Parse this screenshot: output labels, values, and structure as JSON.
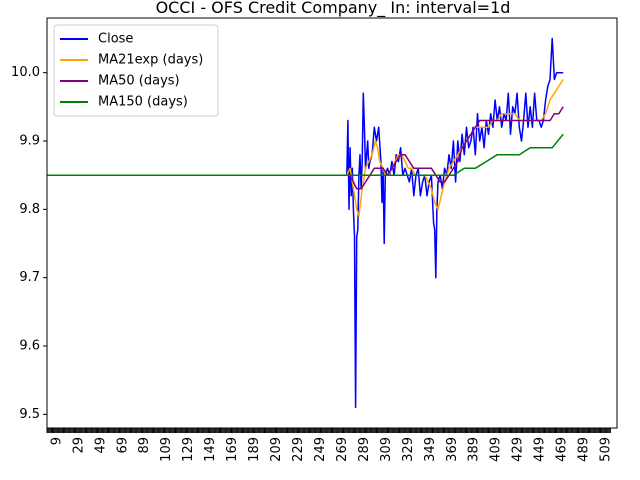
{
  "chart_data": {
    "type": "line",
    "title": "OCCI - OFS Credit Company_ In: interval=1d",
    "xlabel": "",
    "ylabel": "",
    "xlim": [
      0,
      519
    ],
    "ylim": [
      9.48,
      10.08
    ],
    "x_ticks": [
      9,
      29,
      49,
      69,
      89,
      109,
      129,
      149,
      169,
      189,
      209,
      229,
      249,
      269,
      289,
      309,
      329,
      349,
      369,
      389,
      409,
      429,
      449,
      469,
      489,
      509
    ],
    "x_tick_labels": [
      "9",
      "29",
      "49",
      "69",
      "89",
      "109",
      "129",
      "149",
      "169",
      "189",
      "209",
      "229",
      "249",
      "269",
      "289",
      "309",
      "329",
      "349",
      "369",
      "389",
      "409",
      "429",
      "449",
      "469",
      "489",
      "509"
    ],
    "y_ticks": [
      9.5,
      9.6,
      9.7,
      9.8,
      9.9,
      10.0
    ],
    "y_tick_labels": [
      "9.5",
      "9.6",
      "9.7",
      "9.8",
      "9.9",
      "10.0"
    ],
    "grid": false,
    "legend_position": "top-left",
    "series": [
      {
        "name": "Close",
        "color": "#0000ff",
        "points": [
          [
            0,
            9.85
          ],
          [
            273,
            9.85
          ],
          [
            274,
            9.93
          ],
          [
            275,
            9.8
          ],
          [
            276,
            9.89
          ],
          [
            277,
            9.82
          ],
          [
            278,
            9.86
          ],
          [
            279,
            9.8
          ],
          [
            280,
            9.76
          ],
          [
            281,
            9.51
          ],
          [
            282,
            9.76
          ],
          [
            283,
            9.77
          ],
          [
            284,
            9.85
          ],
          [
            285,
            9.88
          ],
          [
            286,
            9.83
          ],
          [
            287,
            9.87
          ],
          [
            288,
            9.97
          ],
          [
            289,
            9.92
          ],
          [
            290,
            9.86
          ],
          [
            291,
            9.88
          ],
          [
            292,
            9.9
          ],
          [
            293,
            9.86
          ],
          [
            294,
            9.87
          ],
          [
            296,
            9.88
          ],
          [
            298,
            9.92
          ],
          [
            300,
            9.9
          ],
          [
            302,
            9.92
          ],
          [
            304,
            9.87
          ],
          [
            305,
            9.81
          ],
          [
            306,
            9.86
          ],
          [
            307,
            9.75
          ],
          [
            308,
            9.85
          ],
          [
            310,
            9.86
          ],
          [
            312,
            9.85
          ],
          [
            314,
            9.87
          ],
          [
            316,
            9.85
          ],
          [
            318,
            9.88
          ],
          [
            320,
            9.87
          ],
          [
            322,
            9.89
          ],
          [
            324,
            9.85
          ],
          [
            326,
            9.86
          ],
          [
            328,
            9.85
          ],
          [
            330,
            9.84
          ],
          [
            332,
            9.86
          ],
          [
            334,
            9.82
          ],
          [
            336,
            9.85
          ],
          [
            338,
            9.86
          ],
          [
            340,
            9.82
          ],
          [
            342,
            9.84
          ],
          [
            344,
            9.85
          ],
          [
            346,
            9.82
          ],
          [
            348,
            9.84
          ],
          [
            350,
            9.85
          ],
          [
            352,
            9.78
          ],
          [
            353,
            9.77
          ],
          [
            354,
            9.7
          ],
          [
            355,
            9.8
          ],
          [
            356,
            9.84
          ],
          [
            358,
            9.85
          ],
          [
            360,
            9.83
          ],
          [
            362,
            9.86
          ],
          [
            364,
            9.85
          ],
          [
            366,
            9.88
          ],
          [
            368,
            9.86
          ],
          [
            370,
            9.9
          ],
          [
            372,
            9.84
          ],
          [
            374,
            9.9
          ],
          [
            376,
            9.87
          ],
          [
            378,
            9.91
          ],
          [
            380,
            9.88
          ],
          [
            382,
            9.92
          ],
          [
            384,
            9.89
          ],
          [
            386,
            9.9
          ],
          [
            388,
            9.92
          ],
          [
            390,
            9.88
          ],
          [
            392,
            9.94
          ],
          [
            394,
            9.9
          ],
          [
            396,
            9.92
          ],
          [
            398,
            9.89
          ],
          [
            400,
            9.93
          ],
          [
            402,
            9.91
          ],
          [
            404,
            9.94
          ],
          [
            406,
            9.92
          ],
          [
            408,
            9.96
          ],
          [
            410,
            9.93
          ],
          [
            412,
            9.95
          ],
          [
            414,
            9.92
          ],
          [
            416,
            9.94
          ],
          [
            418,
            9.93
          ],
          [
            420,
            9.97
          ],
          [
            422,
            9.91
          ],
          [
            424,
            9.95
          ],
          [
            426,
            9.94
          ],
          [
            428,
            9.97
          ],
          [
            430,
            9.92
          ],
          [
            432,
            9.9
          ],
          [
            434,
            9.93
          ],
          [
            436,
            9.97
          ],
          [
            438,
            9.92
          ],
          [
            440,
            9.95
          ],
          [
            442,
            9.92
          ],
          [
            444,
            9.97
          ],
          [
            446,
            9.93
          ],
          [
            448,
            9.93
          ],
          [
            450,
            9.92
          ],
          [
            452,
            9.93
          ],
          [
            454,
            9.96
          ],
          [
            456,
            9.98
          ],
          [
            458,
            9.99
          ],
          [
            460,
            10.05
          ],
          [
            462,
            9.99
          ],
          [
            464,
            10.0
          ],
          [
            466,
            10.0
          ],
          [
            470,
            10.0
          ]
        ]
      },
      {
        "name": "MA21exp (days)",
        "color": "#ffa500",
        "points": [
          [
            0,
            9.85
          ],
          [
            273,
            9.85
          ],
          [
            276,
            9.86
          ],
          [
            279,
            9.83
          ],
          [
            282,
            9.8
          ],
          [
            284,
            9.79
          ],
          [
            287,
            9.83
          ],
          [
            290,
            9.86
          ],
          [
            293,
            9.87
          ],
          [
            296,
            9.88
          ],
          [
            299,
            9.9
          ],
          [
            301,
            9.89
          ],
          [
            303,
            9.87
          ],
          [
            306,
            9.86
          ],
          [
            308,
            9.85
          ],
          [
            311,
            9.85
          ],
          [
            314,
            9.86
          ],
          [
            317,
            9.87
          ],
          [
            320,
            9.88
          ],
          [
            323,
            9.88
          ],
          [
            326,
            9.87
          ],
          [
            329,
            9.86
          ],
          [
            332,
            9.86
          ],
          [
            335,
            9.85
          ],
          [
            338,
            9.85
          ],
          [
            341,
            9.85
          ],
          [
            344,
            9.85
          ],
          [
            347,
            9.84
          ],
          [
            350,
            9.83
          ],
          [
            353,
            9.81
          ],
          [
            356,
            9.8
          ],
          [
            359,
            9.82
          ],
          [
            362,
            9.84
          ],
          [
            366,
            9.86
          ],
          [
            370,
            9.87
          ],
          [
            374,
            9.88
          ],
          [
            378,
            9.89
          ],
          [
            382,
            9.9
          ],
          [
            386,
            9.91
          ],
          [
            390,
            9.92
          ],
          [
            394,
            9.92
          ],
          [
            398,
            9.92
          ],
          [
            402,
            9.92
          ],
          [
            406,
            9.93
          ],
          [
            410,
            9.93
          ],
          [
            414,
            9.94
          ],
          [
            418,
            9.94
          ],
          [
            422,
            9.94
          ],
          [
            426,
            9.94
          ],
          [
            430,
            9.93
          ],
          [
            434,
            9.93
          ],
          [
            438,
            9.93
          ],
          [
            442,
            9.93
          ],
          [
            446,
            9.93
          ],
          [
            450,
            9.93
          ],
          [
            454,
            9.94
          ],
          [
            458,
            9.96
          ],
          [
            462,
            9.97
          ],
          [
            466,
            9.98
          ],
          [
            470,
            9.99
          ]
        ]
      },
      {
        "name": "MA50 (days)",
        "color": "#800080",
        "points": [
          [
            0,
            9.85
          ],
          [
            273,
            9.85
          ],
          [
            276,
            9.85
          ],
          [
            279,
            9.84
          ],
          [
            282,
            9.83
          ],
          [
            286,
            9.83
          ],
          [
            290,
            9.84
          ],
          [
            294,
            9.85
          ],
          [
            298,
            9.86
          ],
          [
            302,
            9.86
          ],
          [
            306,
            9.86
          ],
          [
            310,
            9.85
          ],
          [
            314,
            9.86
          ],
          [
            318,
            9.87
          ],
          [
            322,
            9.88
          ],
          [
            326,
            9.88
          ],
          [
            330,
            9.87
          ],
          [
            334,
            9.86
          ],
          [
            338,
            9.86
          ],
          [
            342,
            9.86
          ],
          [
            346,
            9.86
          ],
          [
            350,
            9.86
          ],
          [
            354,
            9.85
          ],
          [
            358,
            9.84
          ],
          [
            362,
            9.84
          ],
          [
            366,
            9.85
          ],
          [
            370,
            9.86
          ],
          [
            374,
            9.87
          ],
          [
            378,
            9.89
          ],
          [
            382,
            9.9
          ],
          [
            386,
            9.91
          ],
          [
            390,
            9.92
          ],
          [
            394,
            9.93
          ],
          [
            398,
            9.93
          ],
          [
            402,
            9.93
          ],
          [
            406,
            9.93
          ],
          [
            410,
            9.93
          ],
          [
            414,
            9.93
          ],
          [
            418,
            9.93
          ],
          [
            422,
            9.93
          ],
          [
            426,
            9.93
          ],
          [
            430,
            9.93
          ],
          [
            434,
            9.93
          ],
          [
            438,
            9.93
          ],
          [
            442,
            9.93
          ],
          [
            446,
            9.93
          ],
          [
            450,
            9.93
          ],
          [
            454,
            9.93
          ],
          [
            458,
            9.93
          ],
          [
            462,
            9.94
          ],
          [
            466,
            9.94
          ],
          [
            470,
            9.95
          ]
        ]
      },
      {
        "name": "MA150 (days)",
        "color": "#008000",
        "points": [
          [
            0,
            9.85
          ],
          [
            273,
            9.85
          ],
          [
            280,
            9.85
          ],
          [
            290,
            9.85
          ],
          [
            300,
            9.85
          ],
          [
            310,
            9.85
          ],
          [
            320,
            9.85
          ],
          [
            330,
            9.85
          ],
          [
            340,
            9.85
          ],
          [
            350,
            9.85
          ],
          [
            360,
            9.85
          ],
          [
            370,
            9.85
          ],
          [
            380,
            9.86
          ],
          [
            390,
            9.86
          ],
          [
            400,
            9.87
          ],
          [
            410,
            9.88
          ],
          [
            420,
            9.88
          ],
          [
            430,
            9.88
          ],
          [
            440,
            9.89
          ],
          [
            450,
            9.89
          ],
          [
            460,
            9.89
          ],
          [
            465,
            9.9
          ],
          [
            470,
            9.91
          ]
        ]
      }
    ]
  }
}
